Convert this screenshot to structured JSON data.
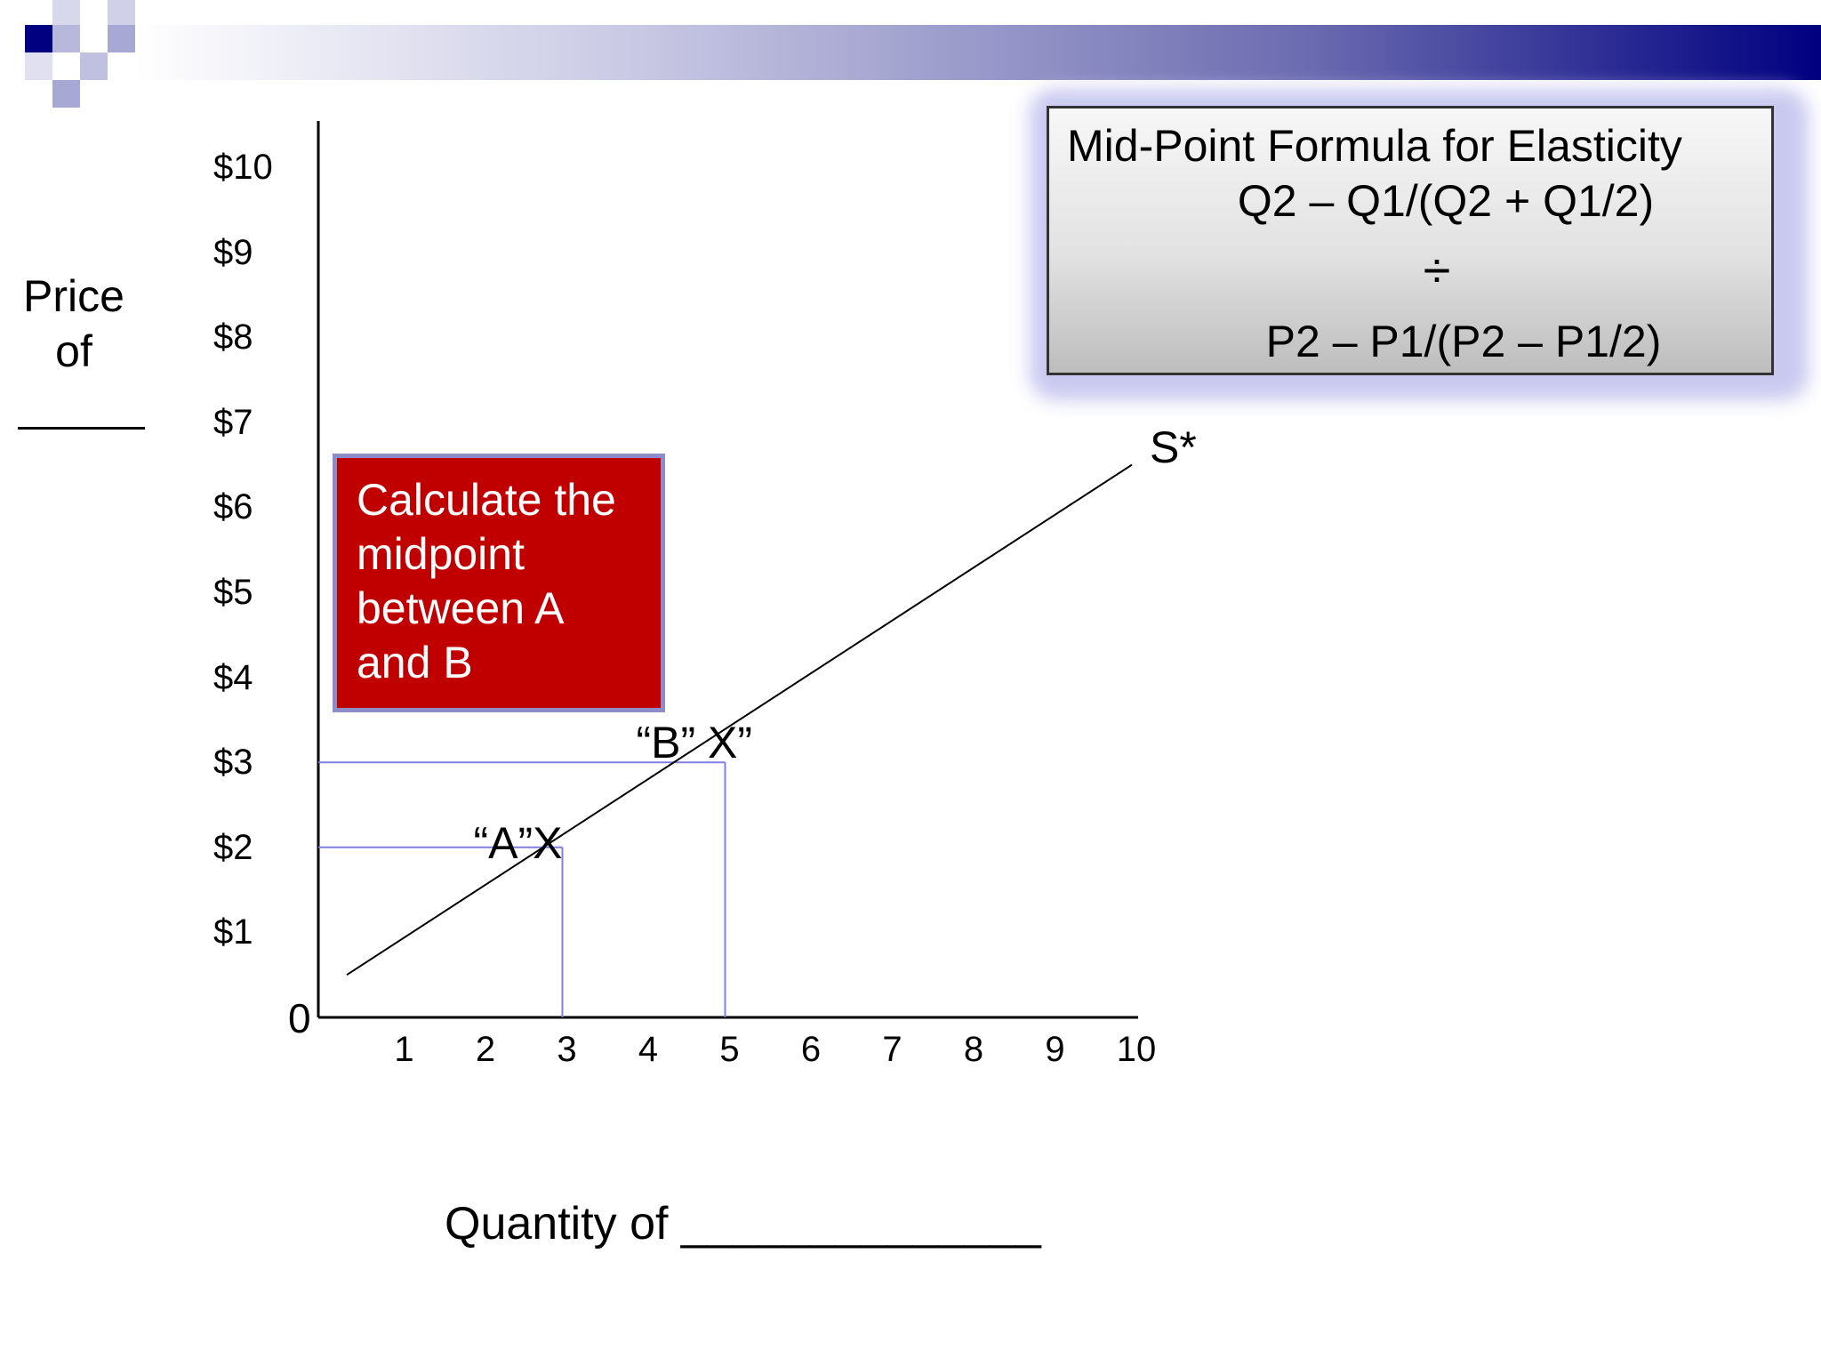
{
  "colors": {
    "header_start": "#ffffff",
    "header_end": "#000080",
    "callout_fill": "#c00000",
    "callout_border": "#8c8cc8",
    "guide_lines": "#8080e0",
    "supply_line": "#000000"
  },
  "callout": {
    "lines": [
      "Calculate the",
      "midpoint",
      "between A",
      "and B"
    ]
  },
  "formula": {
    "title": "Mid-Point Formula for Elasticity",
    "numerator": "Q2 – Q1/(Q2 + Q1/2)",
    "divide_symbol": "÷",
    "denominator": "P2 – P1/(P2 – P1/2)"
  },
  "chart_data": {
    "type": "line",
    "xlabel": "Quantity of ______________",
    "ylabel_lines": [
      "Price",
      "of"
    ],
    "origin_label": "0",
    "x_ticks": [
      "1",
      "2",
      "3",
      "4",
      "5",
      "6",
      "7",
      "8",
      "9",
      "10"
    ],
    "y_ticks": [
      "$10",
      "$9",
      "$8",
      "$7",
      "$6",
      "$5",
      "$4",
      "$3",
      "$2",
      "$1"
    ],
    "xlim": [
      0,
      10
    ],
    "ylim": [
      0,
      10
    ],
    "grid": false,
    "series": [
      {
        "name": "S*",
        "x": [
          0.35,
          10
        ],
        "y": [
          0.5,
          6.5
        ]
      }
    ],
    "points": [
      {
        "label": "“A”X",
        "x": 3,
        "y": 2
      },
      {
        "label": "“B” X”",
        "x": 5,
        "y": 3
      }
    ]
  }
}
